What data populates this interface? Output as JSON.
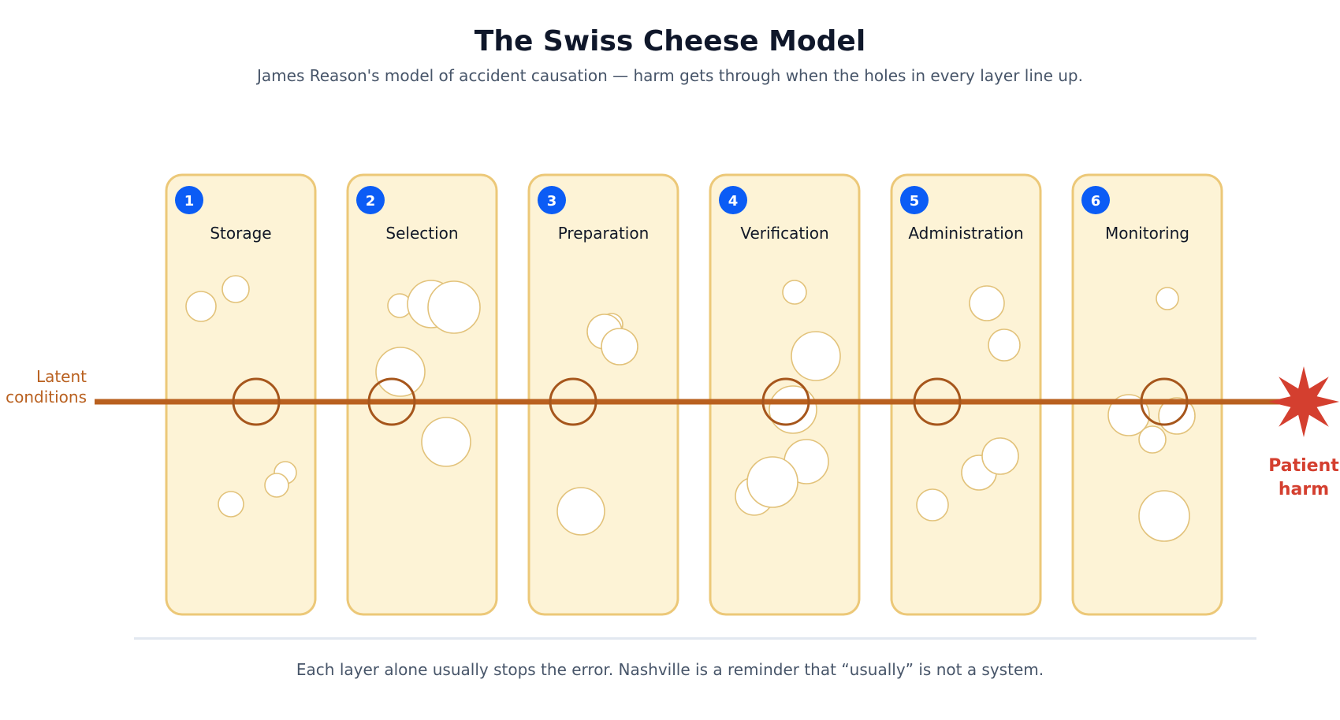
{
  "title": "The Swiss Cheese Model",
  "subtitle": "James Reason's model of accident causation — harm gets through when the holes in every layer line up.",
  "footer": "Each layer alone usually stops the error. Nashville is a reminder that “usually” is not a system.",
  "start_label": [
    "Latent",
    "conditions"
  ],
  "end_label": [
    "Patient",
    "harm"
  ],
  "colors": {
    "layer_fill": "#fdf3d6",
    "layer_stroke": "#ecc878",
    "badge": "#0b5cf5",
    "path": "#b9601f",
    "harm": "#d43f2f"
  },
  "layers": [
    {
      "number": "1",
      "label": "Storage"
    },
    {
      "number": "2",
      "label": "Selection"
    },
    {
      "number": "3",
      "label": "Preparation"
    },
    {
      "number": "4",
      "label": "Verification"
    },
    {
      "number": "5",
      "label": "Administration"
    },
    {
      "number": "6",
      "label": "Monitoring"
    }
  ]
}
